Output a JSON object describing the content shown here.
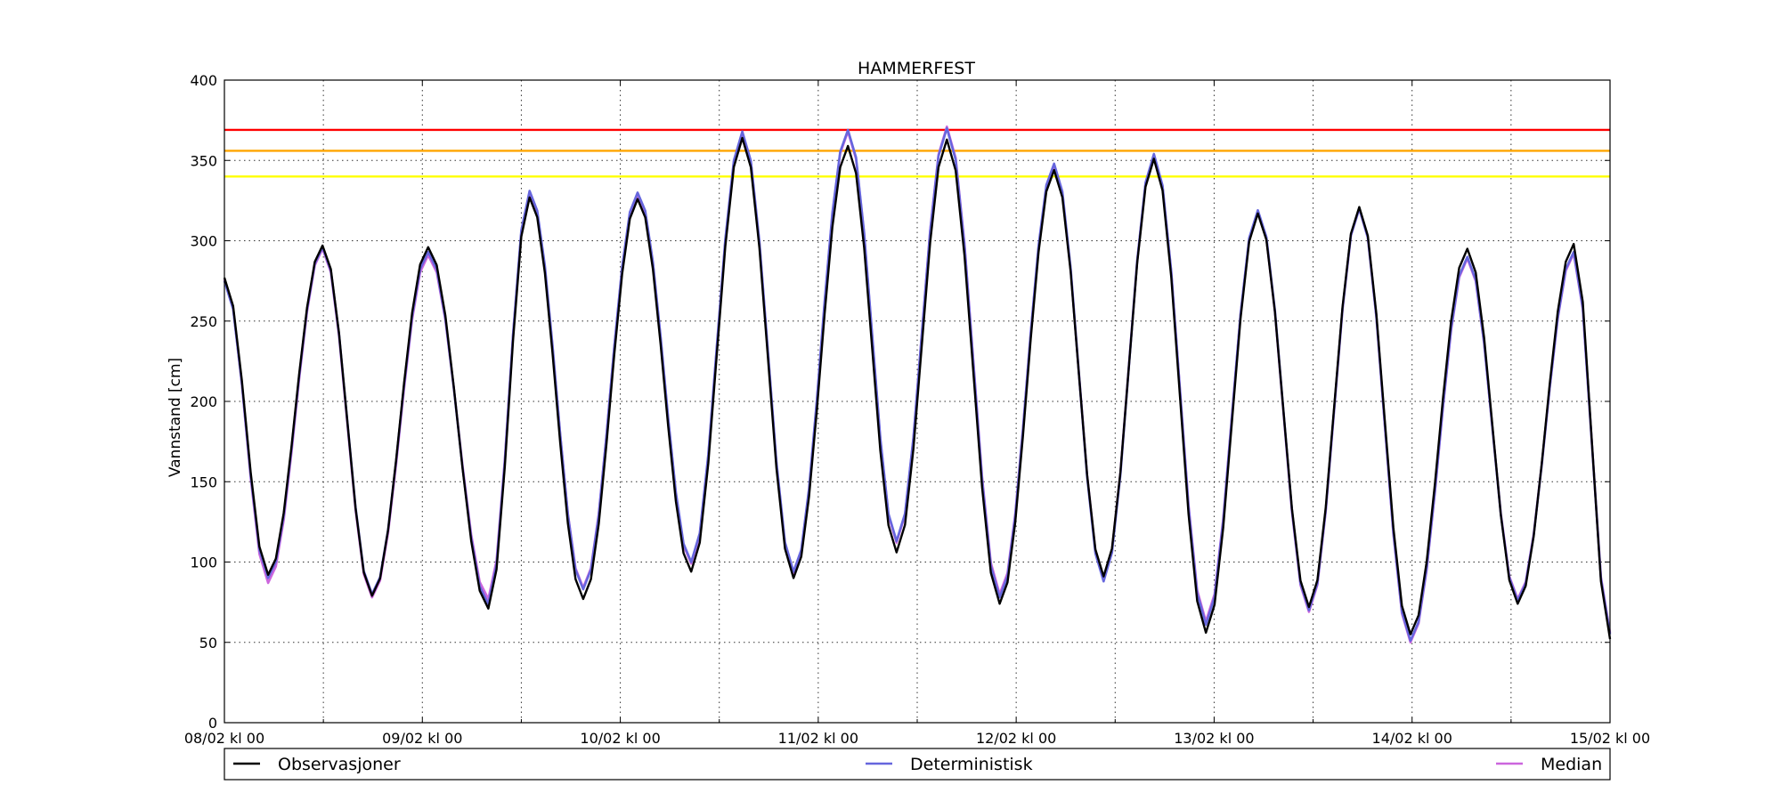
{
  "chart_data": {
    "type": "line",
    "title": "HAMMERFEST",
    "xlabel": "",
    "ylabel": "Vannstand [cm]",
    "ylim": [
      0,
      400
    ],
    "xlim": [
      "08/02 kl 00",
      "15/02 kl 00"
    ],
    "x_unit": "hours since 08/02 kl 00",
    "y_ticks": [
      0,
      50,
      100,
      150,
      200,
      250,
      300,
      350,
      400
    ],
    "x_ticks": [
      {
        "hour": 0,
        "label": "08/02 kl 00"
      },
      {
        "hour": 24,
        "label": "09/02 kl 00"
      },
      {
        "hour": 48,
        "label": "10/02 kl 00"
      },
      {
        "hour": 72,
        "label": "11/02 kl 00"
      },
      {
        "hour": 96,
        "label": "12/02 kl 00"
      },
      {
        "hour": 120,
        "label": "13/02 kl 00"
      },
      {
        "hour": 144,
        "label": "14/02 kl 00"
      },
      {
        "hour": 168,
        "label": "15/02 kl 00"
      }
    ],
    "minor_x_ticks": [
      12,
      36,
      60,
      84,
      108,
      132,
      156
    ],
    "grid": true,
    "legend_position": "bottom",
    "thresholds": [
      {
        "value": 369,
        "color": "#ff0000"
      },
      {
        "value": 356,
        "color": "#ffa500"
      },
      {
        "value": 340,
        "color": "#ffff00"
      }
    ],
    "extrema": {
      "observasjoner": [
        [
          0,
          277
        ],
        [
          5.3,
          92
        ],
        [
          11.9,
          297
        ],
        [
          17.9,
          79
        ],
        [
          24.7,
          296
        ],
        [
          32.0,
          71
        ],
        [
          37.0,
          327
        ],
        [
          43.5,
          77
        ],
        [
          50.1,
          326
        ],
        [
          56.6,
          94
        ],
        [
          62.8,
          364
        ],
        [
          69.0,
          90
        ],
        [
          75.6,
          359
        ],
        [
          81.5,
          106
        ],
        [
          87.6,
          363
        ],
        [
          94.0,
          74
        ],
        [
          100.6,
          344
        ],
        [
          106.6,
          91
        ],
        [
          112.7,
          351
        ],
        [
          119.0,
          56
        ],
        [
          125.3,
          317
        ],
        [
          131.5,
          72
        ],
        [
          137.6,
          321
        ],
        [
          143.8,
          55
        ],
        [
          150.7,
          295
        ],
        [
          156.8,
          74
        ],
        [
          163.6,
          298
        ],
        [
          168,
          52
        ]
      ],
      "deterministisk": [
        [
          0,
          275
        ],
        [
          5.3,
          90
        ],
        [
          11.9,
          296
        ],
        [
          17.9,
          80
        ],
        [
          24.7,
          293
        ],
        [
          32.0,
          74
        ],
        [
          37.0,
          331
        ],
        [
          43.5,
          83
        ],
        [
          50.1,
          330
        ],
        [
          56.6,
          100
        ],
        [
          62.8,
          368
        ],
        [
          69.0,
          94
        ],
        [
          75.6,
          369
        ],
        [
          81.5,
          113
        ],
        [
          87.6,
          370
        ],
        [
          94.0,
          78
        ],
        [
          100.6,
          348
        ],
        [
          106.6,
          88
        ],
        [
          112.7,
          354
        ],
        [
          119.0,
          61
        ],
        [
          125.3,
          319
        ],
        [
          131.5,
          70
        ],
        [
          137.6,
          320
        ],
        [
          143.8,
          51
        ],
        [
          150.7,
          290
        ],
        [
          156.8,
          76
        ],
        [
          163.6,
          293
        ],
        [
          168,
          55
        ]
      ],
      "median": [
        [
          0,
          276
        ],
        [
          5.3,
          87
        ],
        [
          11.9,
          295
        ],
        [
          17.9,
          78
        ],
        [
          24.7,
          291
        ],
        [
          32.0,
          77
        ],
        [
          37.0,
          329
        ],
        [
          43.5,
          84
        ],
        [
          50.1,
          329
        ],
        [
          56.6,
          99
        ],
        [
          62.8,
          367
        ],
        [
          69.0,
          93
        ],
        [
          75.6,
          368
        ],
        [
          81.5,
          112
        ],
        [
          87.6,
          371
        ],
        [
          94.0,
          80
        ],
        [
          100.6,
          346
        ],
        [
          106.6,
          90
        ],
        [
          112.7,
          353
        ],
        [
          119.0,
          63
        ],
        [
          125.3,
          318
        ],
        [
          131.5,
          69
        ],
        [
          137.6,
          320
        ],
        [
          143.8,
          50
        ],
        [
          150.7,
          289
        ],
        [
          156.8,
          77
        ],
        [
          163.6,
          292
        ],
        [
          168,
          56
        ]
      ]
    },
    "series": [
      {
        "name": "Observasjoner",
        "key": "observasjoner",
        "color": "#000000"
      },
      {
        "name": "Deterministisk",
        "key": "deterministisk",
        "color": "#6666dd"
      },
      {
        "name": "Median",
        "key": "median",
        "color": "#cc66dd"
      }
    ]
  }
}
